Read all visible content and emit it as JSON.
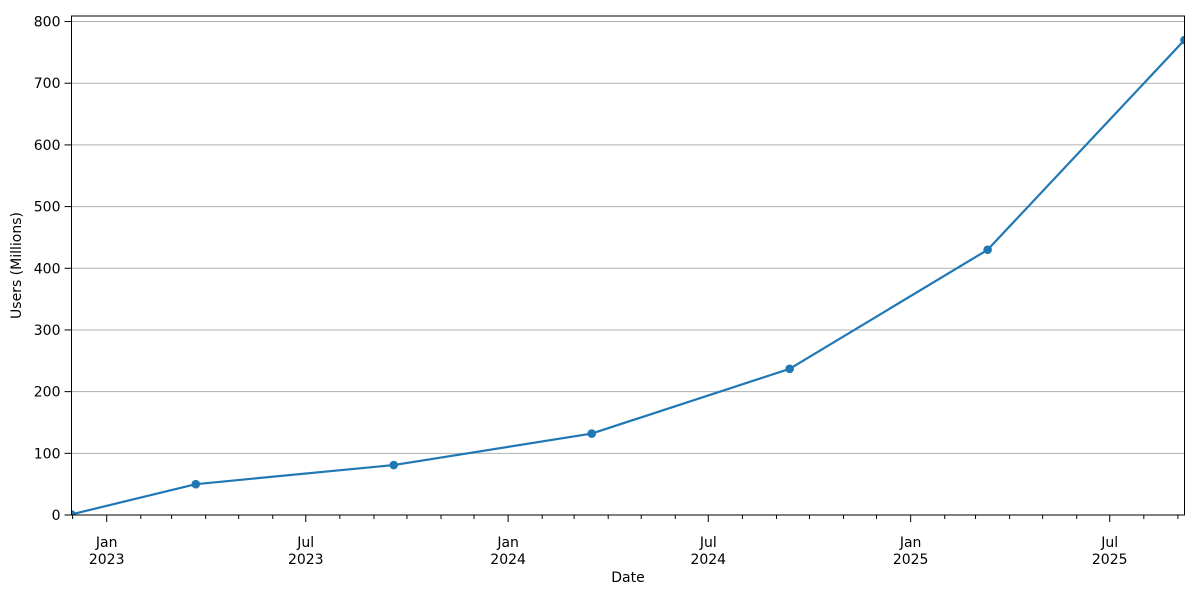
{
  "chart_data": {
    "type": "line",
    "title": "",
    "xlabel": "Date",
    "ylabel": "Users (Millions)",
    "series": [
      {
        "name": "Users (Millions)",
        "points": [
          {
            "date": "2022-11-30",
            "value": 1
          },
          {
            "date": "2023-03-23",
            "value": 50
          },
          {
            "date": "2023-09-19",
            "value": 81
          },
          {
            "date": "2024-03-17",
            "value": 132
          },
          {
            "date": "2024-09-13",
            "value": 237
          },
          {
            "date": "2025-03-12",
            "value": 430
          },
          {
            "date": "2025-09-07",
            "value": 770
          }
        ]
      }
    ],
    "line_color": "#1f77b4",
    "marker": "circle",
    "marker_color": "#1f77b4",
    "grid": {
      "axis": "y",
      "color": "#b0b0b0",
      "on": true
    },
    "spine_color": "#000000",
    "background_color": "#ffffff",
    "ylim": [
      0,
      809
    ],
    "xlim": [
      "2022-11-30",
      "2025-09-07"
    ],
    "yticks": [
      0,
      100,
      200,
      300,
      400,
      500,
      600,
      700,
      800
    ],
    "xticks_major": [
      {
        "date": "2023-01-01",
        "month_label": "Jan",
        "year_label": "2023"
      },
      {
        "date": "2023-07-01",
        "month_label": "Jul",
        "year_label": "2023"
      },
      {
        "date": "2024-01-01",
        "month_label": "Jan",
        "year_label": "2024"
      },
      {
        "date": "2024-07-01",
        "month_label": "Jul",
        "year_label": "2024"
      },
      {
        "date": "2025-01-01",
        "month_label": "Jan",
        "year_label": "2025"
      },
      {
        "date": "2025-07-01",
        "month_label": "Jul",
        "year_label": "2025"
      }
    ],
    "xticks_minor": "monthly",
    "legend": "none"
  }
}
